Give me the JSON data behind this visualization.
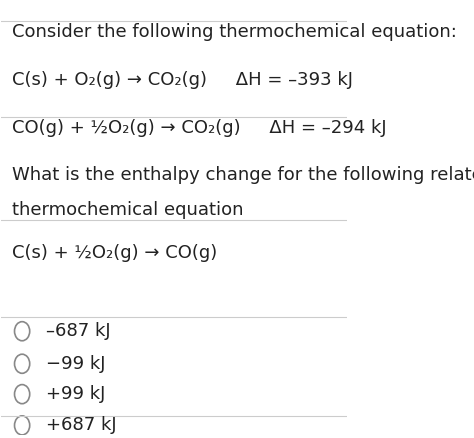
{
  "background_color": "#ffffff",
  "title_text": "Consider the following thermochemical equation:",
  "eq1": "C(s) + O₂(g) → CO₂(g)     ΔH = –393 kJ",
  "eq2": "CO(g) + ½O₂(g) → CO₂(g)     ΔH = –294 kJ",
  "question_line1": "What is the enthalpy change for the following related",
  "question_line2": "thermochemical equation",
  "eq3": "C(s) + ½O₂(g) → CO(g)",
  "choices": [
    "–687 kJ",
    "−99 kJ",
    "+99 kJ",
    "+687 kJ"
  ],
  "font_size": 13,
  "font_family": "DejaVu Sans",
  "text_color": "#222222"
}
